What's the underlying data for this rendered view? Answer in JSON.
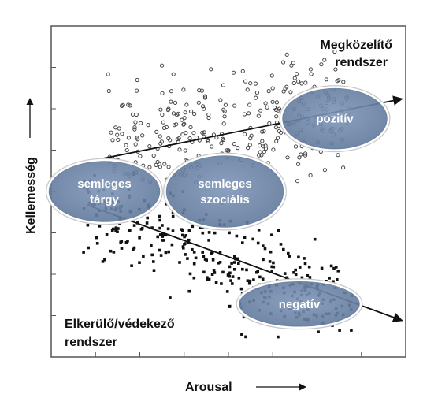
{
  "chart_data": {
    "type": "scatter",
    "xlabel": "Arousal",
    "ylabel": "Kellemesség",
    "xlim": [
      0,
      10
    ],
    "ylim": [
      0,
      10
    ],
    "grid": false,
    "corner_labels": {
      "approach": [
        "Megközelítő",
        "rendszer"
      ],
      "avoid": [
        "Elkerülő/védekező",
        "rendszer"
      ]
    },
    "series": [
      {
        "marker": "open-circle",
        "color": "#444444",
        "role": "pleasant cluster"
      },
      {
        "marker": "filled-square",
        "color": "#111111",
        "role": "unpleasant cluster"
      }
    ],
    "regression_lines": [
      {
        "direction": "upward",
        "from": [
          1.0,
          5.9
        ],
        "to": [
          9.9,
          7.8
        ]
      },
      {
        "direction": "downward",
        "from": [
          1.0,
          4.6
        ],
        "to": [
          9.9,
          1.1
        ]
      }
    ],
    "regions": [
      {
        "label": [
          "pozitív"
        ],
        "center": [
          8.0,
          7.2
        ]
      },
      {
        "label": [
          "semleges",
          "tárgy"
        ],
        "center": [
          1.5,
          5.0
        ]
      },
      {
        "label": [
          "semleges",
          "szociális"
        ],
        "center": [
          4.9,
          5.0
        ]
      },
      {
        "label": [
          "negatív"
        ],
        "center": [
          7.0,
          1.6
        ]
      }
    ],
    "region_color": "#6b84a8"
  }
}
